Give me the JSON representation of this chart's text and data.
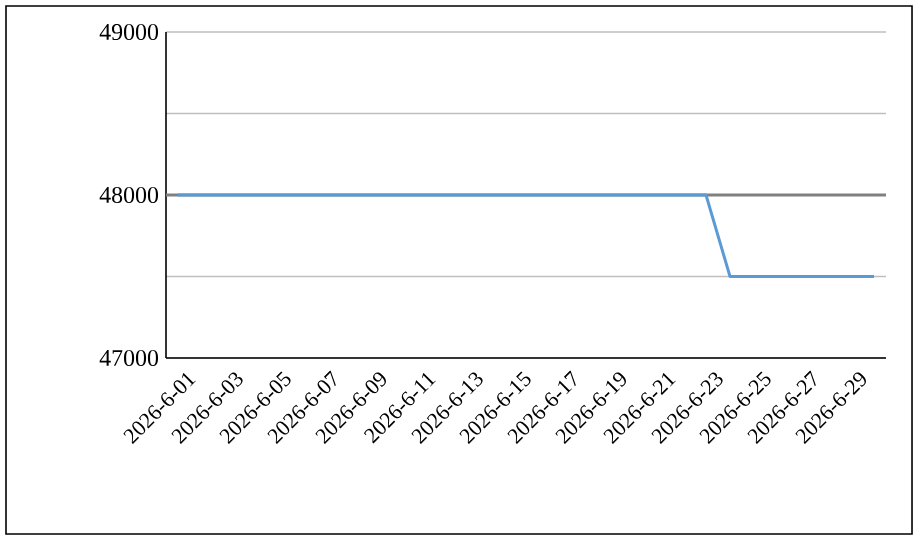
{
  "chart_data": {
    "type": "line",
    "categories": [
      "2026-6-01",
      null,
      "2026-6-03",
      null,
      "2026-6-05",
      null,
      "2026-6-07",
      null,
      "2026-6-09",
      null,
      "2026-6-11",
      null,
      "2026-6-13",
      null,
      "2026-6-15",
      null,
      "2026-6-17",
      null,
      "2026-6-19",
      null,
      "2026-6-21",
      null,
      "2026-6-23",
      null,
      "2026-6-25",
      null,
      "2026-6-27",
      null,
      "2026-6-29",
      null
    ],
    "series": [
      {
        "color": "#5b9bd5",
        "values": [
          48000,
          48000,
          48000,
          48000,
          48000,
          48000,
          48000,
          48000,
          48000,
          48000,
          48000,
          48000,
          48000,
          48000,
          48000,
          48000,
          48000,
          48000,
          48000,
          48000,
          48000,
          48000,
          48000,
          47500,
          47500,
          47500,
          47500,
          47500,
          47500,
          47500
        ]
      }
    ],
    "ref_lines": [
      {
        "axis": "y",
        "value": 48000,
        "color": "#808080"
      }
    ],
    "ylim": [
      47000,
      49000
    ],
    "yticks": [
      47000,
      {
        "value": 47500,
        "label": null
      },
      48000,
      {
        "value": 48500,
        "label": null
      },
      49000
    ],
    "grid": "y",
    "marker": "none",
    "line_style": "solid"
  }
}
